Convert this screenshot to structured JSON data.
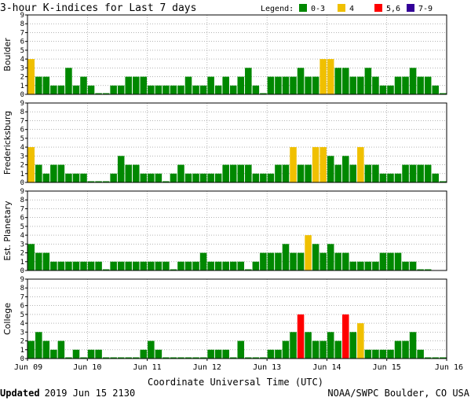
{
  "chart_data": {
    "type": "bar",
    "title": "3-hour K-indices for Last 7 days",
    "legend": {
      "label": "Legend:",
      "placement": "top-right",
      "items": [
        {
          "label": "0-3",
          "color": "#008800"
        },
        {
          "label": "4",
          "color": "#f0c000"
        },
        {
          "label": "5,6",
          "color": "#ff0000"
        },
        {
          "label": "7-9",
          "color": "#330099"
        }
      ]
    },
    "xlabel": "Coordinate Universal Time (UTC)",
    "x_ticks": [
      "Jun 09",
      "Jun 10",
      "Jun 11",
      "Jun 12",
      "Jun 13",
      "Jun 14",
      "Jun 15",
      "Jun 16"
    ],
    "y_ticks": [
      "0",
      "1",
      "2",
      "3",
      "4",
      "5",
      "6",
      "7",
      "8",
      "9"
    ],
    "ylim": [
      0,
      9
    ],
    "grid": true,
    "interval_hours": 3,
    "series": [
      {
        "name": "Boulder",
        "values": [
          4,
          2,
          2,
          1,
          1,
          3,
          1,
          2,
          1,
          0,
          0,
          1,
          1,
          2,
          2,
          2,
          1,
          1,
          1,
          1,
          1,
          2,
          1,
          1,
          2,
          1,
          2,
          1,
          2,
          3,
          1,
          0,
          2,
          2,
          2,
          2,
          3,
          2,
          2,
          4,
          4,
          3,
          3,
          2,
          2,
          3,
          2,
          1,
          1,
          2,
          2,
          3,
          2,
          2,
          1,
          0
        ]
      },
      {
        "name": "Fredericksburg",
        "values": [
          4,
          2,
          1,
          2,
          2,
          1,
          1,
          1,
          0,
          0,
          0,
          1,
          3,
          2,
          2,
          1,
          1,
          1,
          0,
          1,
          2,
          1,
          1,
          1,
          1,
          1,
          2,
          2,
          2,
          2,
          1,
          1,
          1,
          2,
          2,
          4,
          2,
          2,
          4,
          4,
          3,
          2,
          3,
          2,
          4,
          2,
          2,
          1,
          1,
          1,
          2,
          2,
          2,
          2,
          1,
          0
        ]
      },
      {
        "name": "Est. Planetary",
        "values": [
          3,
          2,
          2,
          1,
          1,
          1,
          1,
          1,
          1,
          1,
          0,
          1,
          1,
          1,
          1,
          1,
          1,
          1,
          1,
          0,
          1,
          1,
          1,
          2,
          1,
          1,
          1,
          1,
          1,
          0,
          1,
          2,
          2,
          2,
          3,
          2,
          2,
          4,
          3,
          2,
          3,
          2,
          2,
          1,
          1,
          1,
          1,
          2,
          2,
          2,
          1,
          1,
          0,
          0
        ]
      },
      {
        "name": "College",
        "values": [
          2,
          3,
          2,
          1,
          2,
          0,
          1,
          0,
          1,
          1,
          0,
          0,
          0,
          0,
          0,
          1,
          2,
          1,
          0,
          0,
          0,
          0,
          0,
          0,
          1,
          1,
          1,
          0,
          2,
          0,
          0,
          0,
          1,
          1,
          2,
          3,
          5,
          3,
          2,
          2,
          3,
          2,
          5,
          3,
          4,
          1,
          1,
          1,
          1,
          2,
          2,
          3,
          1,
          0,
          0,
          0
        ]
      }
    ]
  },
  "footer": {
    "updated_label": "Updated",
    "updated_value": "2019 Jun 15 2130",
    "source": "NOAA/SWPC Boulder, CO USA"
  }
}
